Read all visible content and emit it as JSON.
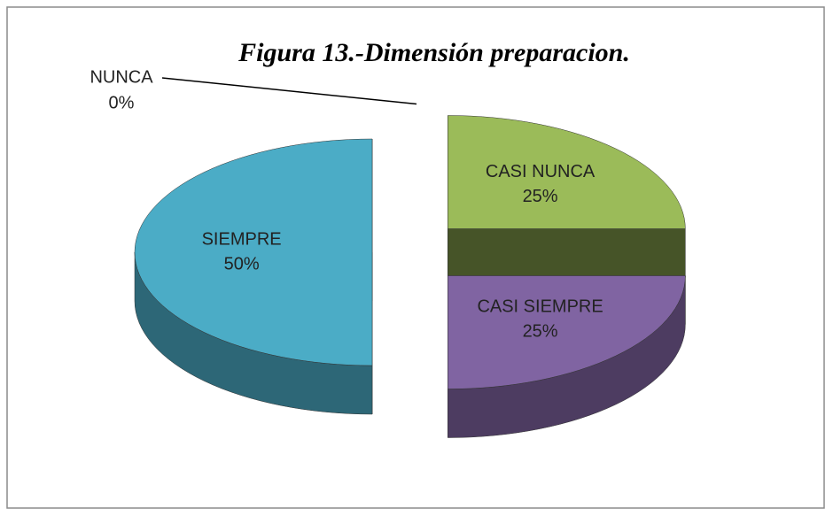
{
  "chart_data": {
    "type": "pie3d",
    "title": "Figura 13.-Dimensión preparacion.",
    "categories": [
      "NUNCA",
      "CASI NUNCA",
      "CASI SIEMPRE",
      "SIEMPRE"
    ],
    "values": [
      0,
      25,
      25,
      50
    ],
    "value_labels": [
      "0%",
      "25%",
      "25%",
      "50%"
    ],
    "colors": [
      "#4f81bd",
      "#9bbb59",
      "#8064a2",
      "#4bacc6"
    ]
  }
}
